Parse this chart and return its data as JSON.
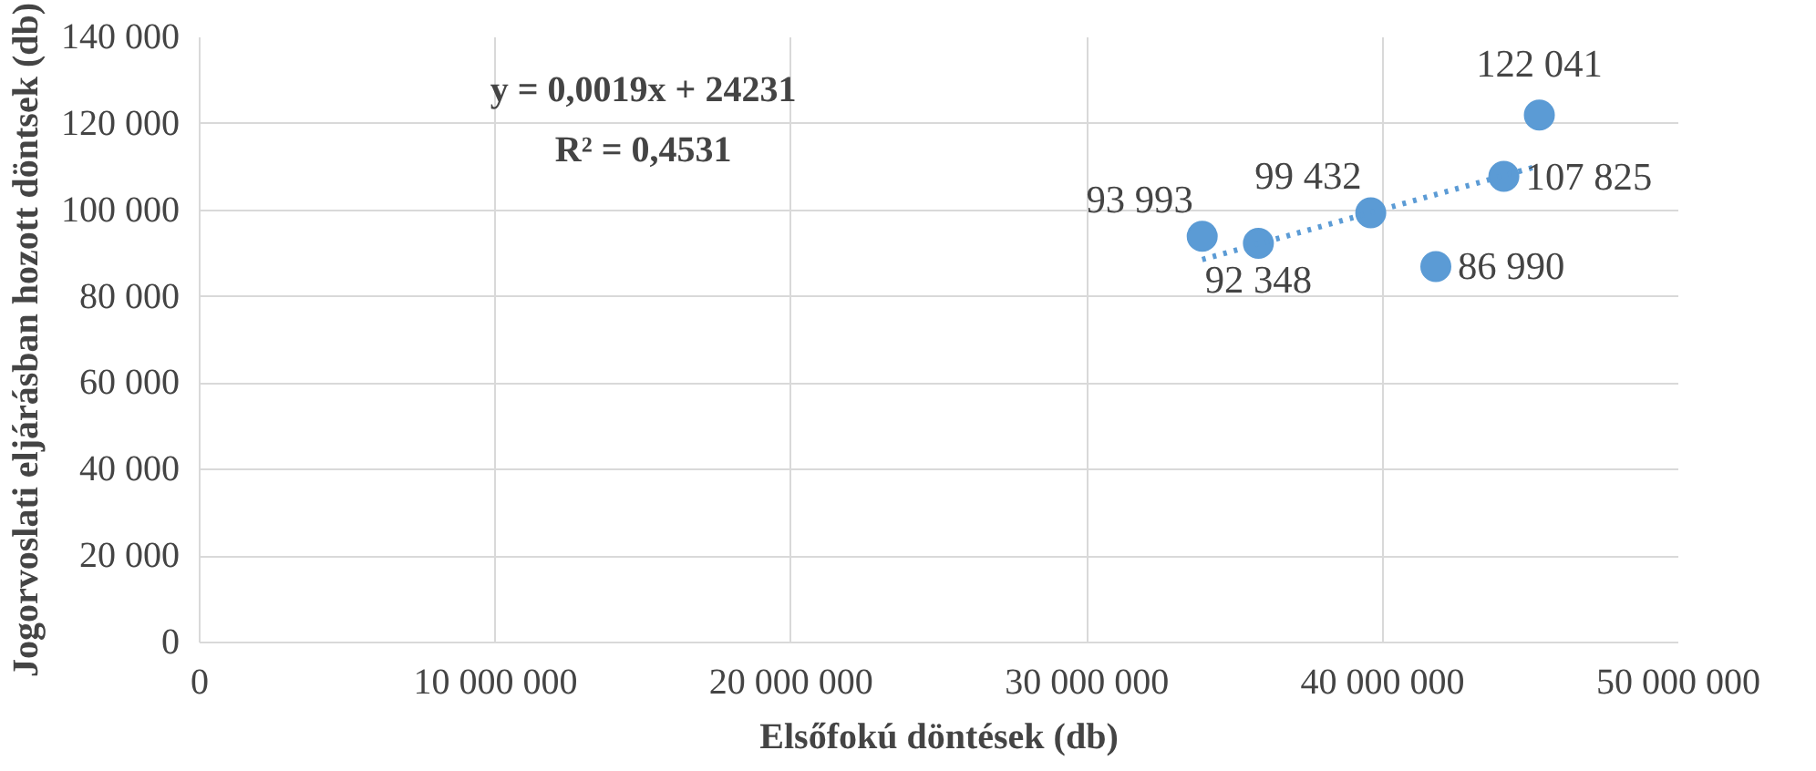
{
  "chart_data": {
    "type": "scatter",
    "xlabel": "Elsőfokú döntések (db)",
    "ylabel": "Jogorvoslati eljárásban hozott döntsek (db)",
    "x": [
      33900000,
      35800000,
      39600000,
      41800000,
      44100000,
      45300000
    ],
    "series": [
      {
        "color": "#5b9bd5",
        "values": [
          93993,
          92348,
          99432,
          86990,
          107825,
          122041
        ],
        "value_labels": [
          "93 993",
          "92 348",
          "99 432",
          "86 990",
          "107 825",
          "122 041"
        ]
      },
      {
        "type": "line",
        "color": "#5b9bd5",
        "line_style": "dotted",
        "marker": "none",
        "x": [
          33900000,
          45300000
        ],
        "values": [
          88600,
          110300
        ]
      }
    ],
    "marker": "circle",
    "annotations": [
      "y = 0,0019x + 24231",
      "R² = 0,4531"
    ],
    "xlim": [
      0,
      50000000
    ],
    "ylim": [
      0,
      140000
    ],
    "xticks": [
      0,
      {
        "value": 10000000,
        "label": "10 000 000"
      },
      {
        "value": 20000000,
        "label": "20 000 000"
      },
      {
        "value": 30000000,
        "label": "30 000 000"
      },
      {
        "value": 40000000,
        "label": "40 000 000"
      },
      {
        "value": 50000000,
        "label": "50 000 000"
      }
    ],
    "yticks": [
      0,
      {
        "value": 20000,
        "label": "20 000"
      },
      {
        "value": 40000,
        "label": "40 000"
      },
      {
        "value": 60000,
        "label": "60 000"
      },
      {
        "value": 80000,
        "label": "80 000"
      },
      {
        "value": 100000,
        "label": "100 000"
      },
      {
        "value": 120000,
        "label": "120 000"
      },
      {
        "value": 140000,
        "label": "140 000"
      }
    ],
    "grid": true
  }
}
